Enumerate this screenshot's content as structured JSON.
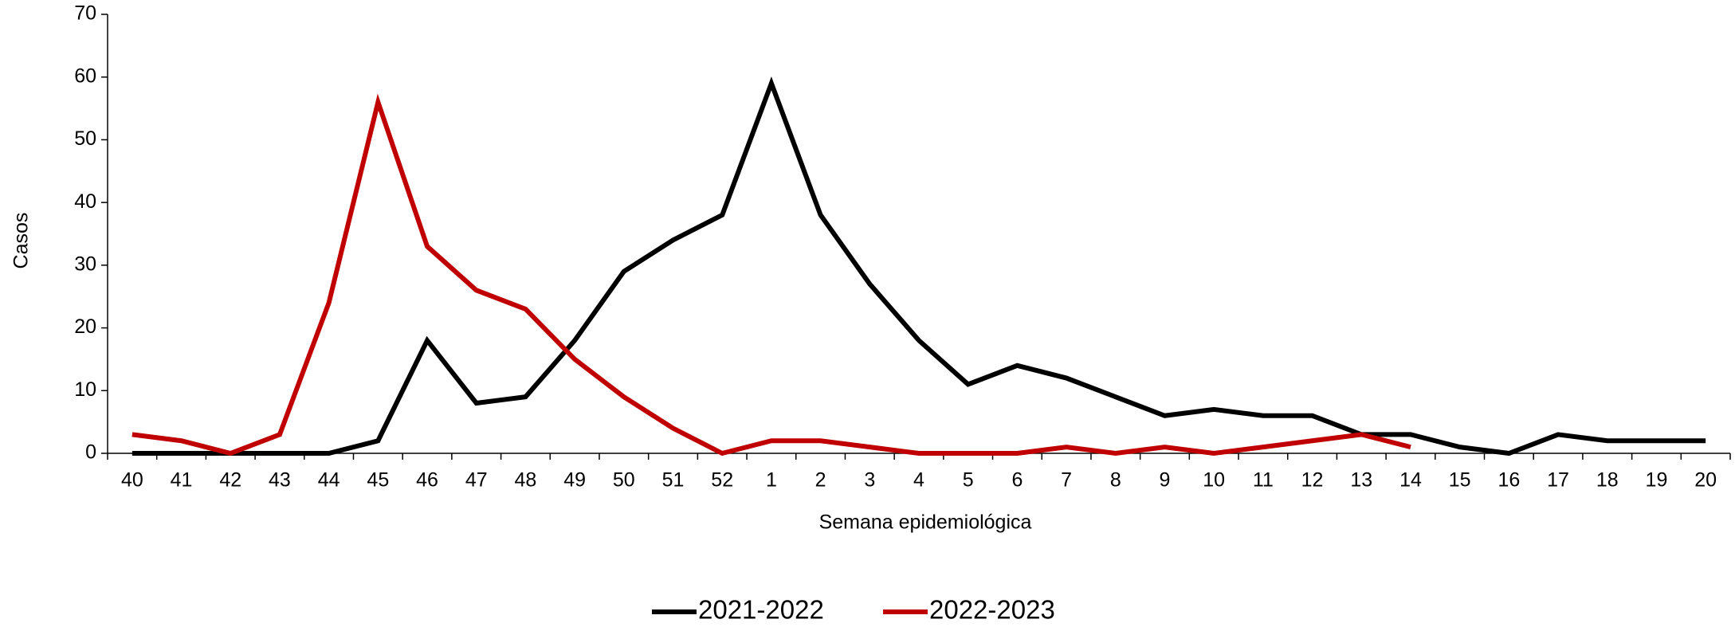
{
  "chart_data": {
    "type": "line",
    "x_label": "Semana epidemiológica",
    "y_label": "Casos",
    "categories": [
      "40",
      "41",
      "42",
      "43",
      "44",
      "45",
      "46",
      "47",
      "48",
      "49",
      "50",
      "51",
      "52",
      "1",
      "2",
      "3",
      "4",
      "5",
      "6",
      "7",
      "8",
      "9",
      "10",
      "11",
      "12",
      "13",
      "14",
      "15",
      "16",
      "17",
      "18",
      "19",
      "20"
    ],
    "series": [
      {
        "name": "2021-2022",
        "color": "#000000",
        "values": [
          0,
          0,
          0,
          0,
          0,
          2,
          18,
          8,
          9,
          18,
          29,
          34,
          38,
          59,
          38,
          27,
          18,
          11,
          14,
          12,
          9,
          6,
          7,
          6,
          6,
          3,
          3,
          1,
          0,
          3,
          2,
          2,
          2
        ]
      },
      {
        "name": "2022-2023",
        "color": "#c00000",
        "values": [
          3,
          2,
          0,
          3,
          24,
          56,
          33,
          26,
          23,
          15,
          9,
          4,
          0,
          2,
          2,
          1,
          0,
          0,
          0,
          1,
          0,
          1,
          0,
          1,
          2,
          3,
          1,
          null,
          null,
          null,
          null,
          null,
          null
        ]
      }
    ],
    "ylim": [
      0,
      70
    ],
    "yticks": [
      0,
      10,
      20,
      30,
      40,
      50,
      60,
      70
    ],
    "grid": false,
    "legend": "bottom"
  }
}
